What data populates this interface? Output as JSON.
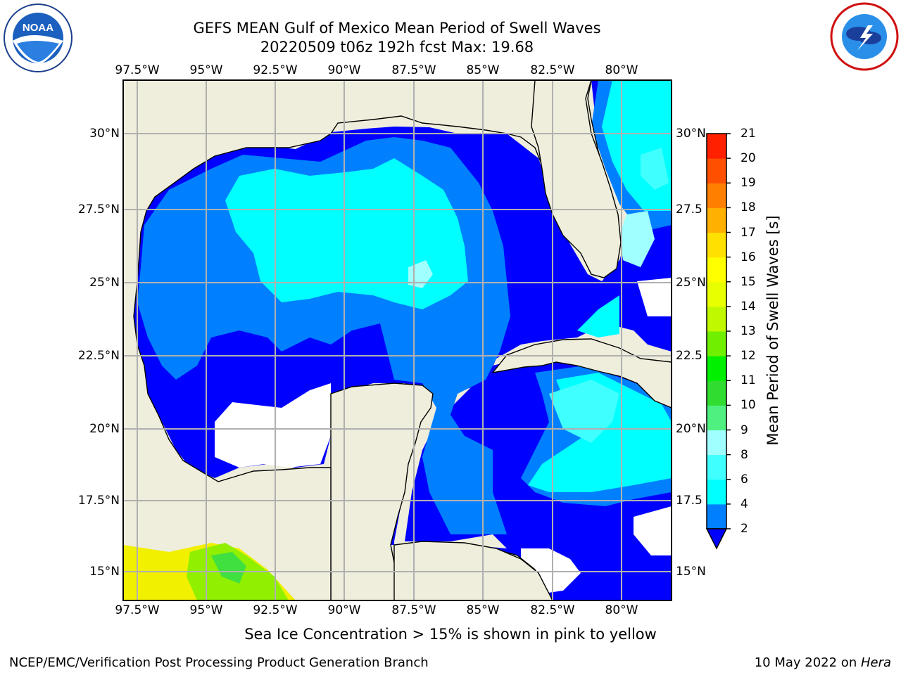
{
  "header": {
    "title_line1": "GEFS MEAN Gulf of Mexico Mean Period of Swell Waves",
    "title_line2": "20220509 t06z 192h fcst   Max: 19.68"
  },
  "logos": {
    "left": "noara-logo",
    "right": "nws-logo"
  },
  "map": {
    "lon_ticks": [
      "97.5°W",
      "95°W",
      "92.5°W",
      "90°W",
      "87.5°W",
      "85°W",
      "82.5°W",
      "80°W"
    ],
    "lat_ticks_left": [
      "30°N",
      "27.5°N",
      "25°N",
      "22.5°N",
      "20°N",
      "17.5°N",
      "15°N"
    ],
    "lat_ticks_right": [
      "30°N",
      "27.5",
      "25°N",
      "22.5",
      "20°N",
      "17.5",
      "15°N"
    ],
    "lon_range": [
      -98,
      -78.2
    ],
    "lat_range": [
      14,
      31.8
    ],
    "land_color": "#efeddc",
    "ocean_color": "#ffffff"
  },
  "colorbar": {
    "label": "Mean Period of Swell Waves [s]",
    "ticks": [
      "2",
      "4",
      "6",
      "8",
      "9",
      "10",
      "11",
      "12",
      "13",
      "14",
      "15",
      "16",
      "17",
      "18",
      "19",
      "20",
      "21"
    ],
    "colors": [
      "#0000ff",
      "#0080ff",
      "#00ffff",
      "#40ffff",
      "#a0ffff",
      "#50f080",
      "#30dc30",
      "#00f000",
      "#70f000",
      "#c0f800",
      "#e8ff00",
      "#ffff00",
      "#ffe000",
      "#ffb000",
      "#ff8000",
      "#ff5000",
      "#ff2000",
      "#ff0000"
    ],
    "under_color": "#0000ff"
  },
  "footer": {
    "note": "Sea Ice Concentration > 15% is shown in pink to yellow",
    "credit_left": "NCEP/EMC/Verification Post Processing Product Generation Branch",
    "credit_right_prefix": "10 May 2022 on ",
    "credit_right_host": "Hera"
  }
}
